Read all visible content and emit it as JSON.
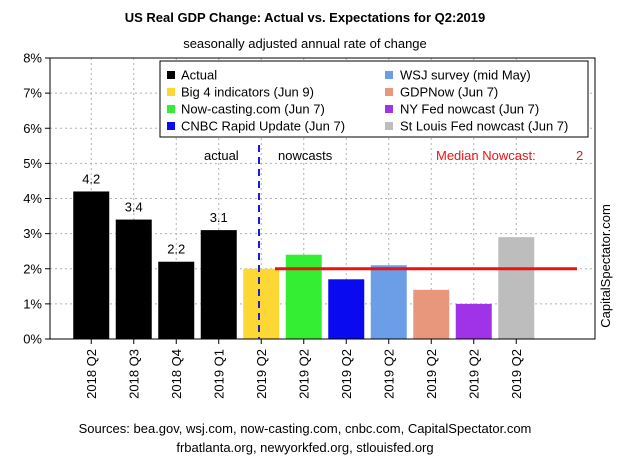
{
  "chart_data": {
    "type": "bar",
    "title": "US Real GDP Change: Actual vs. Expectations for Q2:2019",
    "subtitle": "seasonally adjusted annual rate of change",
    "ylim": [
      0,
      8
    ],
    "yticks": [
      "0%",
      "1%",
      "2%",
      "3%",
      "4%",
      "5%",
      "6%",
      "7%",
      "8%"
    ],
    "grid": true,
    "categories": [
      "2018 Q2",
      "2018 Q3",
      "2018 Q4",
      "2019 Q1",
      "2019 Q2",
      "2019 Q2",
      "2019 Q2",
      "2019 Q2",
      "2019 Q2",
      "2019 Q2",
      "2019 Q2"
    ],
    "values": [
      4.2,
      3.4,
      2.2,
      3.1,
      2.0,
      2.4,
      1.7,
      2.1,
      1.4,
      1.0,
      2.9
    ],
    "colors": [
      "#000000",
      "#000000",
      "#000000",
      "#000000",
      "#fdd835",
      "#33ee33",
      "#0a0af0",
      "#6c9ee8",
      "#e8977c",
      "#a033e8",
      "#bdbdbd"
    ],
    "data_labels": [
      "4.2",
      "3.4",
      "2.2",
      "3.1",
      "",
      "",
      "",
      "",
      "",
      "",
      ""
    ],
    "section_labels": {
      "actual": "actual",
      "nowcasts": "nowcasts"
    },
    "median": {
      "label": "Median Nowcast:",
      "value": 2,
      "value_text": "2",
      "color": "#ee1111"
    },
    "legend": {
      "placement": "top",
      "entries": [
        {
          "label": "Actual",
          "color": "#000000"
        },
        {
          "label": "Big 4 indicators (Jun 9)",
          "color": "#fdd835"
        },
        {
          "label": "Now-casting.com (Jun 7)",
          "color": "#33ee33"
        },
        {
          "label": "CNBC Rapid Update (Jun 7)",
          "color": "#0a0af0"
        },
        {
          "label": "WSJ survey (mid May)",
          "color": "#6c9ee8"
        },
        {
          "label": "GDPNow (Jun 7)",
          "color": "#e8977c"
        },
        {
          "label": "NY Fed nowcast (Jun 7)",
          "color": "#a033e8"
        },
        {
          "label": "St Louis Fed nowcast (Jun 7)",
          "color": "#bdbdbd"
        }
      ]
    },
    "watermark": "CapitalSpectator.com"
  },
  "sources": {
    "line1": "Sources: bea.gov, wsj.com, now-casting.com, cnbc.com, CapitalSpectator.com",
    "line2": "frbatlanta.org, newyorkfed.org, stlouisfed.org"
  }
}
